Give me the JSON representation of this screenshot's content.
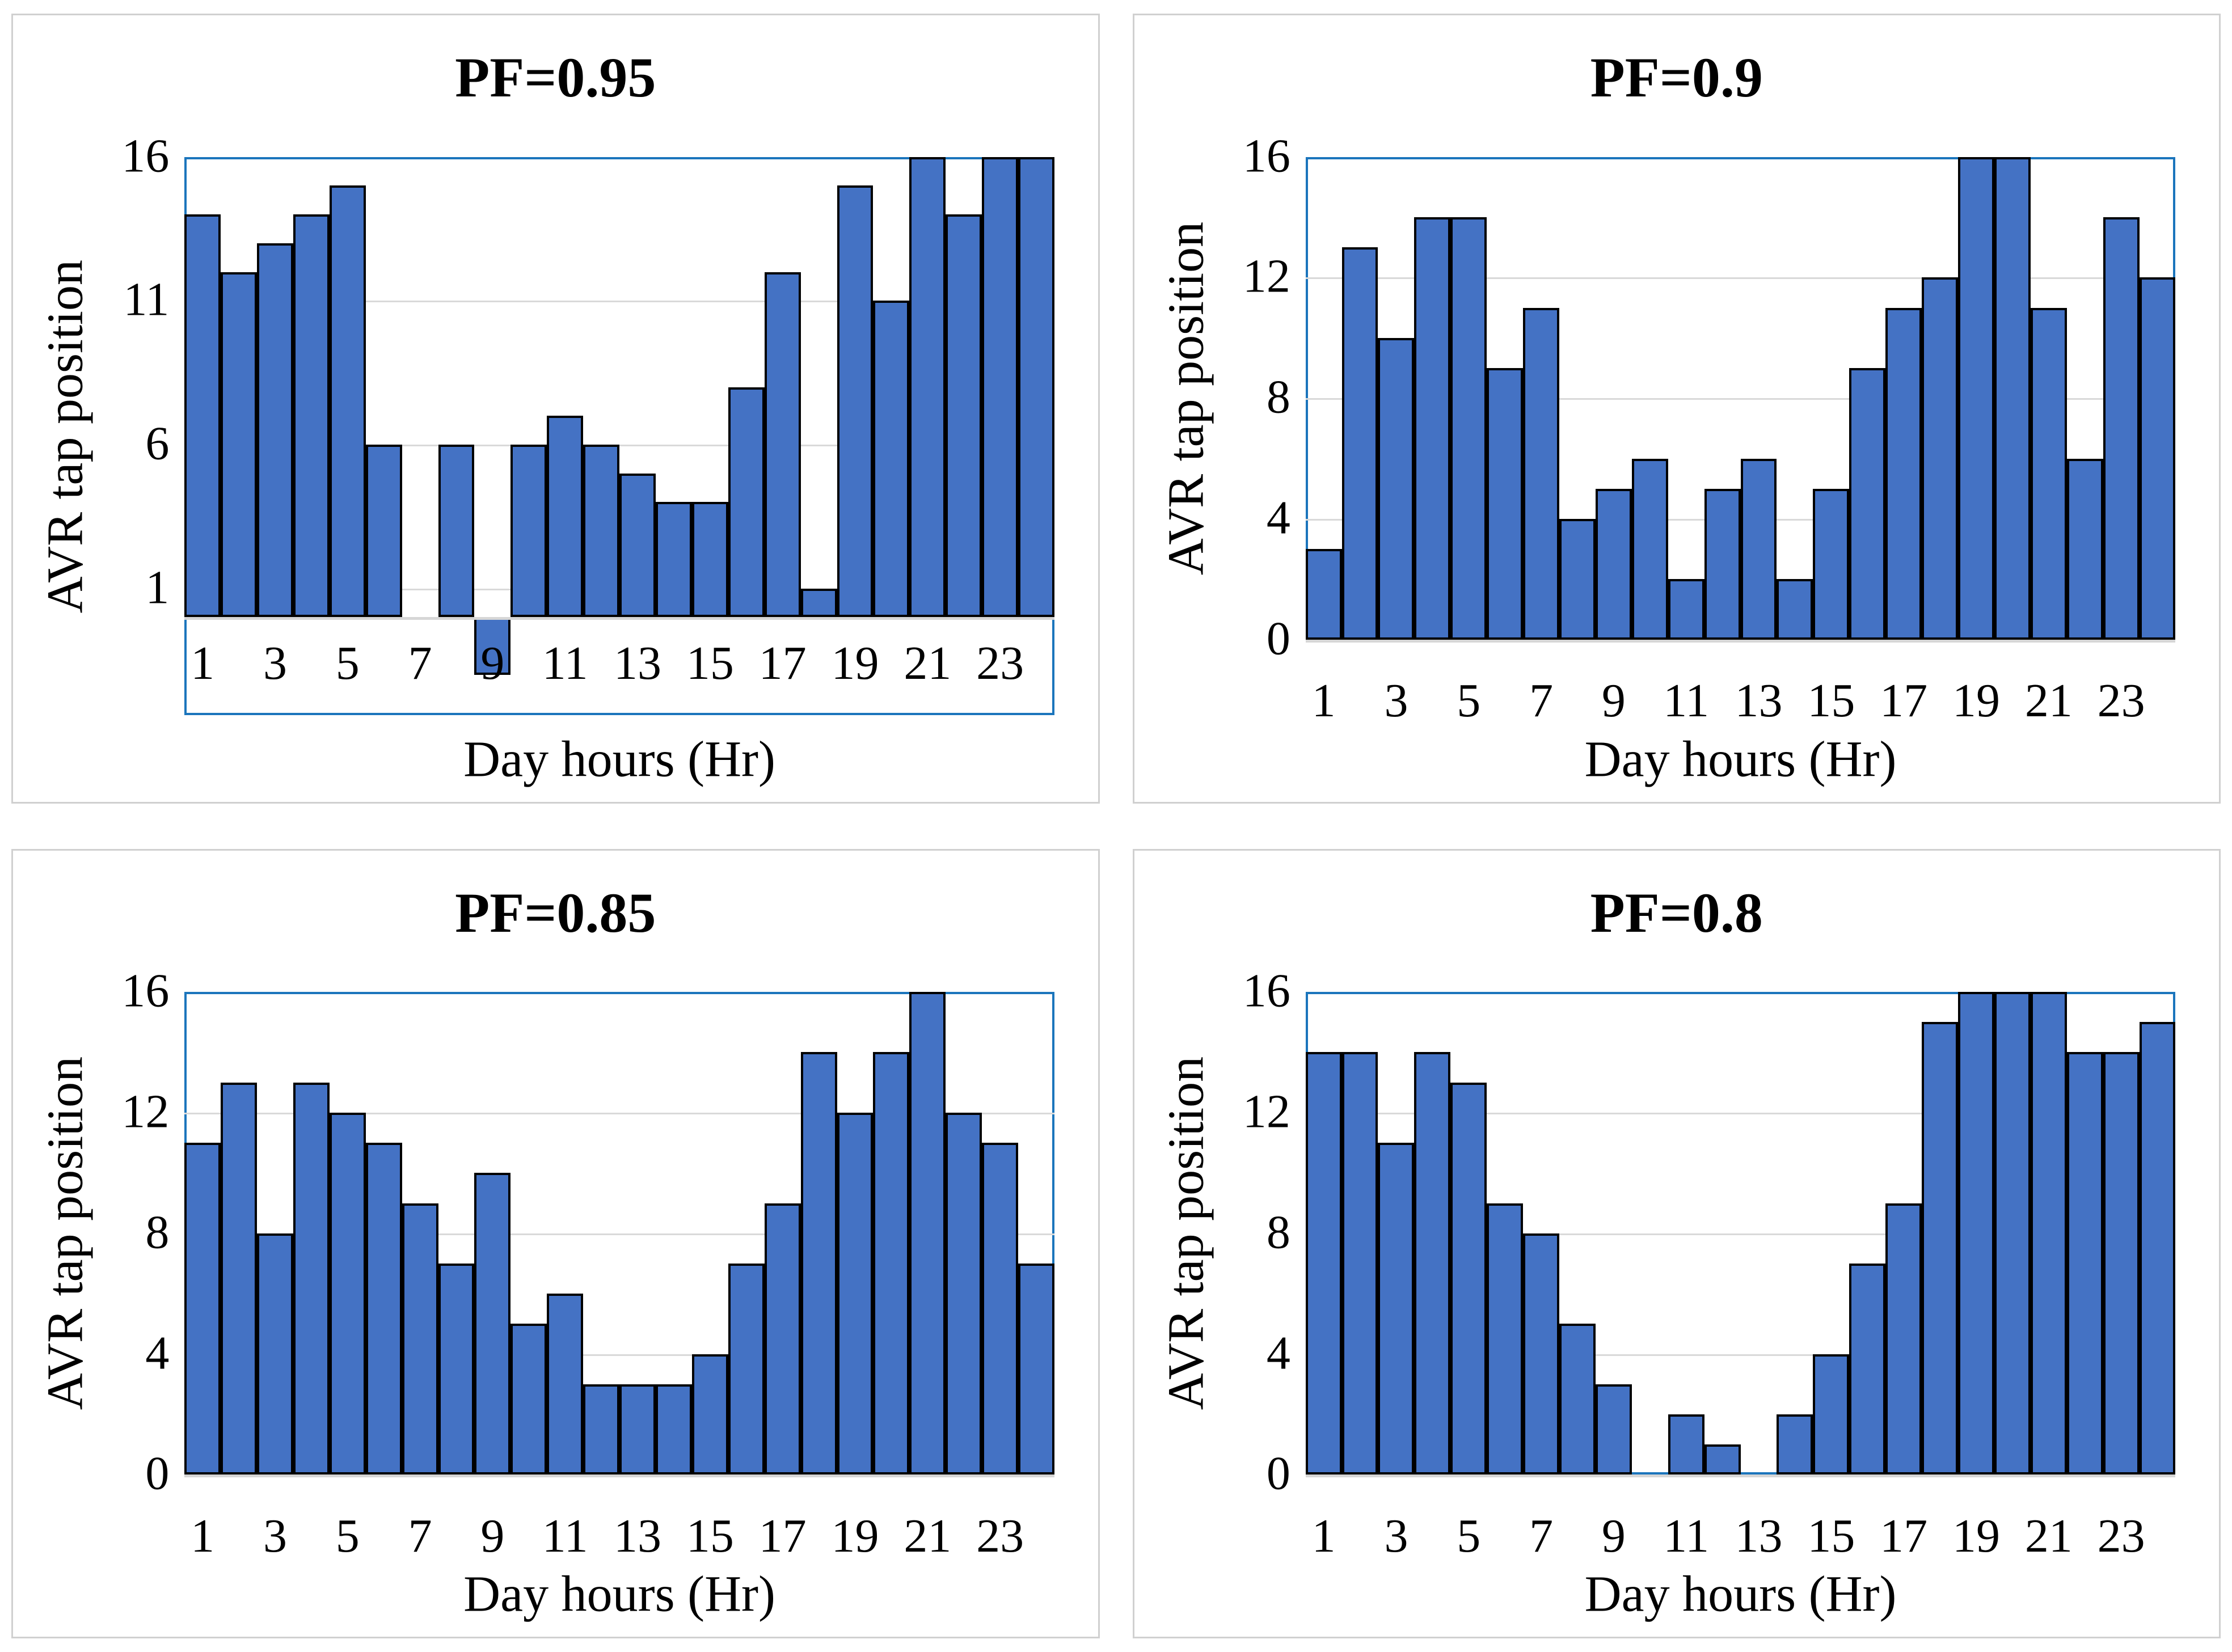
{
  "colors": {
    "bar_fill": "#4472c4",
    "bar_border": "#000000",
    "plot_border": "#1b75bc",
    "gridline": "#d9d9d9",
    "axis_line": "#d6d6d6",
    "card_border": "#d0d0d0",
    "text": "#000000"
  },
  "chart_data": [
    {
      "type": "bar",
      "title": "PF=0.95",
      "xlabel": "Day hours (Hr)",
      "ylabel": "AVR tap position",
      "x": [
        1,
        2,
        3,
        4,
        5,
        6,
        7,
        8,
        9,
        10,
        11,
        12,
        13,
        14,
        15,
        16,
        17,
        18,
        19,
        20,
        21,
        22,
        23,
        24
      ],
      "values": [
        14,
        12,
        13,
        14,
        15,
        6,
        0,
        6,
        -2,
        6,
        7,
        6,
        5,
        4,
        4,
        8,
        12,
        1,
        15,
        11,
        16,
        14,
        16,
        16
      ],
      "yticks": [
        1,
        6,
        11,
        16
      ],
      "ylim": [
        -3.4,
        16
      ],
      "xticklabels": [
        "1",
        "3",
        "5",
        "7",
        "9",
        "11",
        "13",
        "15",
        "17",
        "19",
        "21",
        "23"
      ],
      "grid": "horizontal",
      "x_labels_inside_plot": true
    },
    {
      "type": "bar",
      "title": "PF=0.9",
      "xlabel": "Day hours (Hr)",
      "ylabel": "AVR tap position",
      "x": [
        1,
        2,
        3,
        4,
        5,
        6,
        7,
        8,
        9,
        10,
        11,
        12,
        13,
        14,
        15,
        16,
        17,
        18,
        19,
        20,
        21,
        22,
        23,
        24
      ],
      "values": [
        3,
        13,
        10,
        14,
        14,
        9,
        11,
        4,
        5,
        6,
        2,
        5,
        6,
        2,
        5,
        9,
        11,
        12,
        16,
        16,
        11,
        6,
        14,
        12
      ],
      "yticks": [
        0,
        4,
        8,
        12,
        16
      ],
      "ylim": [
        0,
        16
      ],
      "xticklabels": [
        "1",
        "3",
        "5",
        "7",
        "9",
        "11",
        "13",
        "15",
        "17",
        "19",
        "21",
        "23"
      ],
      "grid": "horizontal",
      "x_labels_inside_plot": false
    },
    {
      "type": "bar",
      "title": "PF=0.85",
      "xlabel": "Day hours (Hr)",
      "ylabel": "AVR tap position",
      "x": [
        1,
        2,
        3,
        4,
        5,
        6,
        7,
        8,
        9,
        10,
        11,
        12,
        13,
        14,
        15,
        16,
        17,
        18,
        19,
        20,
        21,
        22,
        23,
        24
      ],
      "values": [
        11,
        13,
        8,
        13,
        12,
        11,
        9,
        7,
        10,
        5,
        6,
        3,
        3,
        3,
        4,
        7,
        9,
        14,
        12,
        14,
        16,
        12,
        11,
        7
      ],
      "yticks": [
        0,
        4,
        8,
        12,
        16
      ],
      "ylim": [
        0,
        16
      ],
      "xticklabels": [
        "1",
        "3",
        "5",
        "7",
        "9",
        "11",
        "13",
        "15",
        "17",
        "19",
        "21",
        "23"
      ],
      "grid": "horizontal",
      "x_labels_inside_plot": false
    },
    {
      "type": "bar",
      "title": "PF=0.8",
      "xlabel": "Day hours (Hr)",
      "ylabel": "AVR tap position",
      "x": [
        1,
        2,
        3,
        4,
        5,
        6,
        7,
        8,
        9,
        10,
        11,
        12,
        13,
        14,
        15,
        16,
        17,
        18,
        19,
        20,
        21,
        22,
        23,
        24
      ],
      "values": [
        14,
        14,
        11,
        14,
        13,
        9,
        8,
        5,
        3,
        0,
        2,
        1,
        0,
        2,
        4,
        7,
        9,
        15,
        16,
        16,
        16,
        14,
        14,
        15
      ],
      "yticks": [
        0,
        4,
        8,
        12,
        16
      ],
      "ylim": [
        0,
        16
      ],
      "xticklabels": [
        "1",
        "3",
        "5",
        "7",
        "9",
        "11",
        "13",
        "15",
        "17",
        "19",
        "21",
        "23"
      ],
      "grid": "horizontal",
      "x_labels_inside_plot": false
    }
  ]
}
